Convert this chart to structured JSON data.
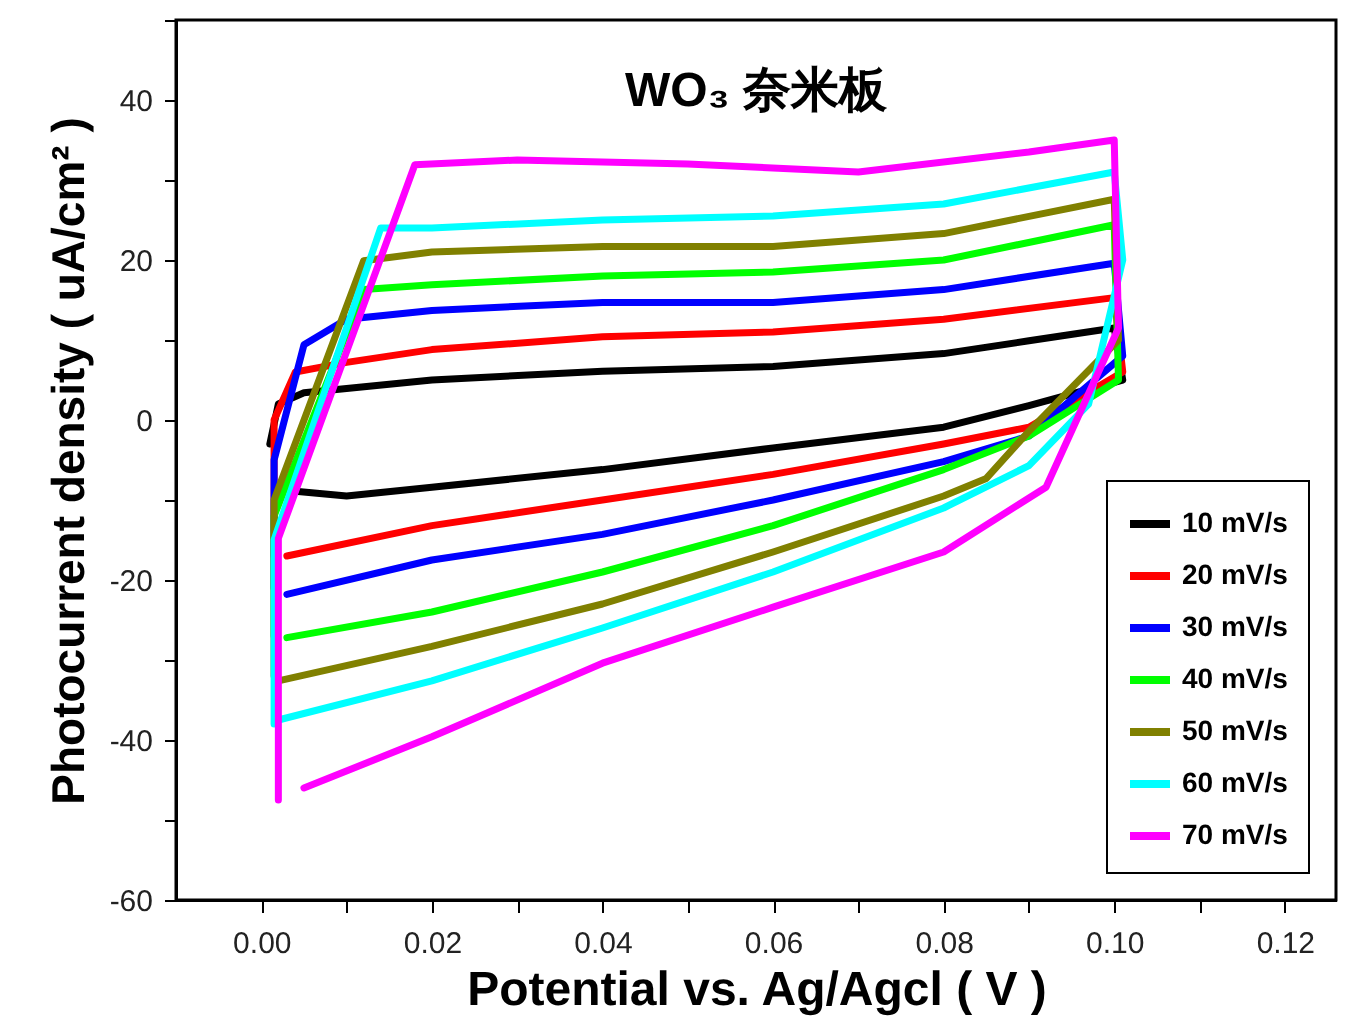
{
  "chart_data": {
    "type": "line",
    "title": "WO₃ 奈米板",
    "xlabel": "Potential vs. Ag/Agcl ( V )",
    "ylabel": "Photocurrent density ( uA/cm² )",
    "xlim": [
      -0.01,
      0.126
    ],
    "ylim": [
      -60,
      50
    ],
    "xticks": [
      {
        "value": 0,
        "label": "0.00"
      },
      {
        "value": 0.01,
        "label": null
      },
      {
        "value": 0.02,
        "label": "0.02"
      },
      {
        "value": 0.03,
        "label": null
      },
      {
        "value": 0.04,
        "label": "0.04"
      },
      {
        "value": 0.05,
        "label": null
      },
      {
        "value": 0.06,
        "label": "0.06"
      },
      {
        "value": 0.07,
        "label": null
      },
      {
        "value": 0.08,
        "label": "0.08"
      },
      {
        "value": 0.09,
        "label": null
      },
      {
        "value": 0.1,
        "label": "0.10"
      },
      {
        "value": 0.11,
        "label": null
      },
      {
        "value": 0.12,
        "label": "0.12"
      }
    ],
    "yticks": [
      -60,
      {
        "value": -50,
        "label": null
      },
      -40,
      {
        "value": -30,
        "label": null
      },
      -20,
      {
        "value": -10,
        "label": null
      },
      0,
      {
        "value": 10,
        "label": null
      },
      20,
      {
        "value": 30,
        "label": null
      },
      40,
      {
        "value": 50,
        "label": null
      }
    ],
    "legend": "bottom right",
    "grid": false,
    "series": [
      {
        "name": "10 mV/s",
        "color": "#000000",
        "x": [
          0.001,
          0.002,
          0.005,
          0.02,
          0.04,
          0.06,
          0.08,
          0.09,
          0.1,
          0.101,
          0.09,
          0.08,
          0.06,
          0.04,
          0.02,
          0.01,
          0.004
        ],
        "values": [
          -3,
          2,
          3.4,
          5,
          6.1,
          6.7,
          8.3,
          9.9,
          11.5,
          5,
          1.8,
          -0.9,
          -3.5,
          -6.2,
          -8.4,
          -9.5,
          -8.9
        ]
      },
      {
        "name": "20 mV/s",
        "color": "#ff0000",
        "x": [
          0.0015,
          0.0015,
          0.004,
          0.01,
          0.02,
          0.04,
          0.06,
          0.08,
          0.1,
          0.101,
          0.09,
          0.08,
          0.06,
          0.04,
          0.02,
          0.003
        ],
        "values": [
          -17,
          0,
          6,
          7.2,
          8.8,
          10.4,
          11,
          12.6,
          15.3,
          6,
          -0.9,
          -3,
          -6.8,
          -10,
          -13.2,
          -17
        ]
      },
      {
        "name": "30 mV/s",
        "color": "#0000ff",
        "x": [
          0.0015,
          0.0015,
          0.005,
          0.01,
          0.02,
          0.04,
          0.06,
          0.08,
          0.1,
          0.101,
          0.09,
          0.08,
          0.06,
          0.04,
          0.02,
          0.003
        ],
        "values": [
          -21,
          -5,
          9.4,
          12.6,
          13.7,
          14.7,
          14.7,
          16.3,
          19.6,
          8,
          -2,
          -5.2,
          -10,
          -14.3,
          -17.5,
          -21.8
        ]
      },
      {
        "name": "40 mV/s",
        "color": "#00ff00",
        "x": [
          0.0015,
          0.0015,
          0.012,
          0.02,
          0.04,
          0.06,
          0.08,
          0.1,
          0.1005,
          0.09,
          0.08,
          0.06,
          0.04,
          0.02,
          0.003
        ],
        "values": [
          -27,
          -12,
          16.3,
          16.9,
          18,
          18.5,
          20,
          24.4,
          5,
          -2,
          -6.2,
          -13.2,
          -19,
          -24,
          -27.2
        ]
      },
      {
        "name": "50 mV/s",
        "color": "#808000",
        "x": [
          0.0015,
          0.0015,
          0.012,
          0.02,
          0.04,
          0.06,
          0.08,
          0.1,
          0.1005,
          0.09,
          0.085,
          0.08,
          0.06,
          0.04,
          0.02,
          0.002
        ],
        "values": [
          -32,
          -10,
          19.9,
          21,
          21.7,
          21.7,
          23.3,
          27.6,
          10,
          -1.4,
          -7.3,
          -9.5,
          -16.5,
          -23,
          -28.3,
          -32.6
        ]
      },
      {
        "name": "60 mV/s",
        "color": "#00ffff",
        "x": [
          0.0015,
          0.0015,
          0.014,
          0.02,
          0.04,
          0.06,
          0.08,
          0.1,
          0.101,
          0.097,
          0.09,
          0.08,
          0.06,
          0.04,
          0.02,
          0.002
        ],
        "values": [
          -38,
          -15,
          24,
          24,
          25,
          25.5,
          27,
          31,
          20,
          2,
          -5.7,
          -11,
          -19,
          -26,
          -32.6,
          -37.5
        ]
      },
      {
        "name": "70 mV/s",
        "color": "#ff00ff",
        "x": [
          0.002,
          0.002,
          0.018,
          0.03,
          0.05,
          0.07,
          0.09,
          0.1,
          0.1005,
          0.092,
          0.08,
          0.06,
          0.04,
          0.02,
          0.005
        ],
        "values": [
          -47.5,
          -14.8,
          31.9,
          32.5,
          32,
          31,
          33.5,
          35,
          11.5,
          -8.4,
          -16.5,
          -23.4,
          -30.4,
          -39.6,
          -46
        ]
      }
    ]
  }
}
